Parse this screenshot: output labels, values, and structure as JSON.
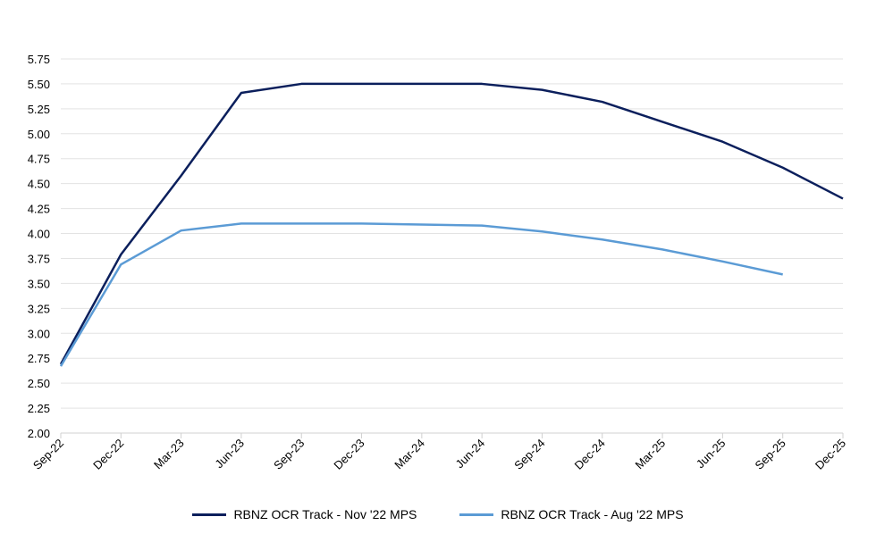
{
  "chart_data": {
    "type": "line",
    "title": "",
    "xlabel": "",
    "ylabel": "",
    "categories": [
      "Sep-22",
      "Dec-22",
      "Mar-23",
      "Jun-23",
      "Sep-23",
      "Dec-23",
      "Mar-24",
      "Jun-24",
      "Sep-24",
      "Dec-24",
      "Mar-25",
      "Jun-25",
      "Sep-25",
      "Dec-25"
    ],
    "ylim": [
      2.0,
      5.75
    ],
    "yticks": [
      "2.00",
      "2.25",
      "2.50",
      "2.75",
      "3.00",
      "3.25",
      "3.50",
      "3.75",
      "4.00",
      "4.25",
      "4.50",
      "4.75",
      "5.00",
      "5.25",
      "5.50",
      "5.75"
    ],
    "grid": true,
    "legend_position": "bottom",
    "series": [
      {
        "name": "RBNZ OCR Track - Nov '22 MPS",
        "color": "#0b1f5c",
        "values": [
          2.69,
          3.79,
          4.58,
          5.41,
          5.5,
          5.5,
          5.5,
          5.5,
          5.44,
          5.32,
          5.12,
          4.92,
          4.66,
          4.35
        ]
      },
      {
        "name": "RBNZ OCR Track - Aug '22 MPS",
        "color": "#5b9bd5",
        "values": [
          2.67,
          3.69,
          4.03,
          4.1,
          4.1,
          4.1,
          4.09,
          4.08,
          4.02,
          3.94,
          3.84,
          3.72,
          3.59,
          null
        ]
      }
    ]
  }
}
